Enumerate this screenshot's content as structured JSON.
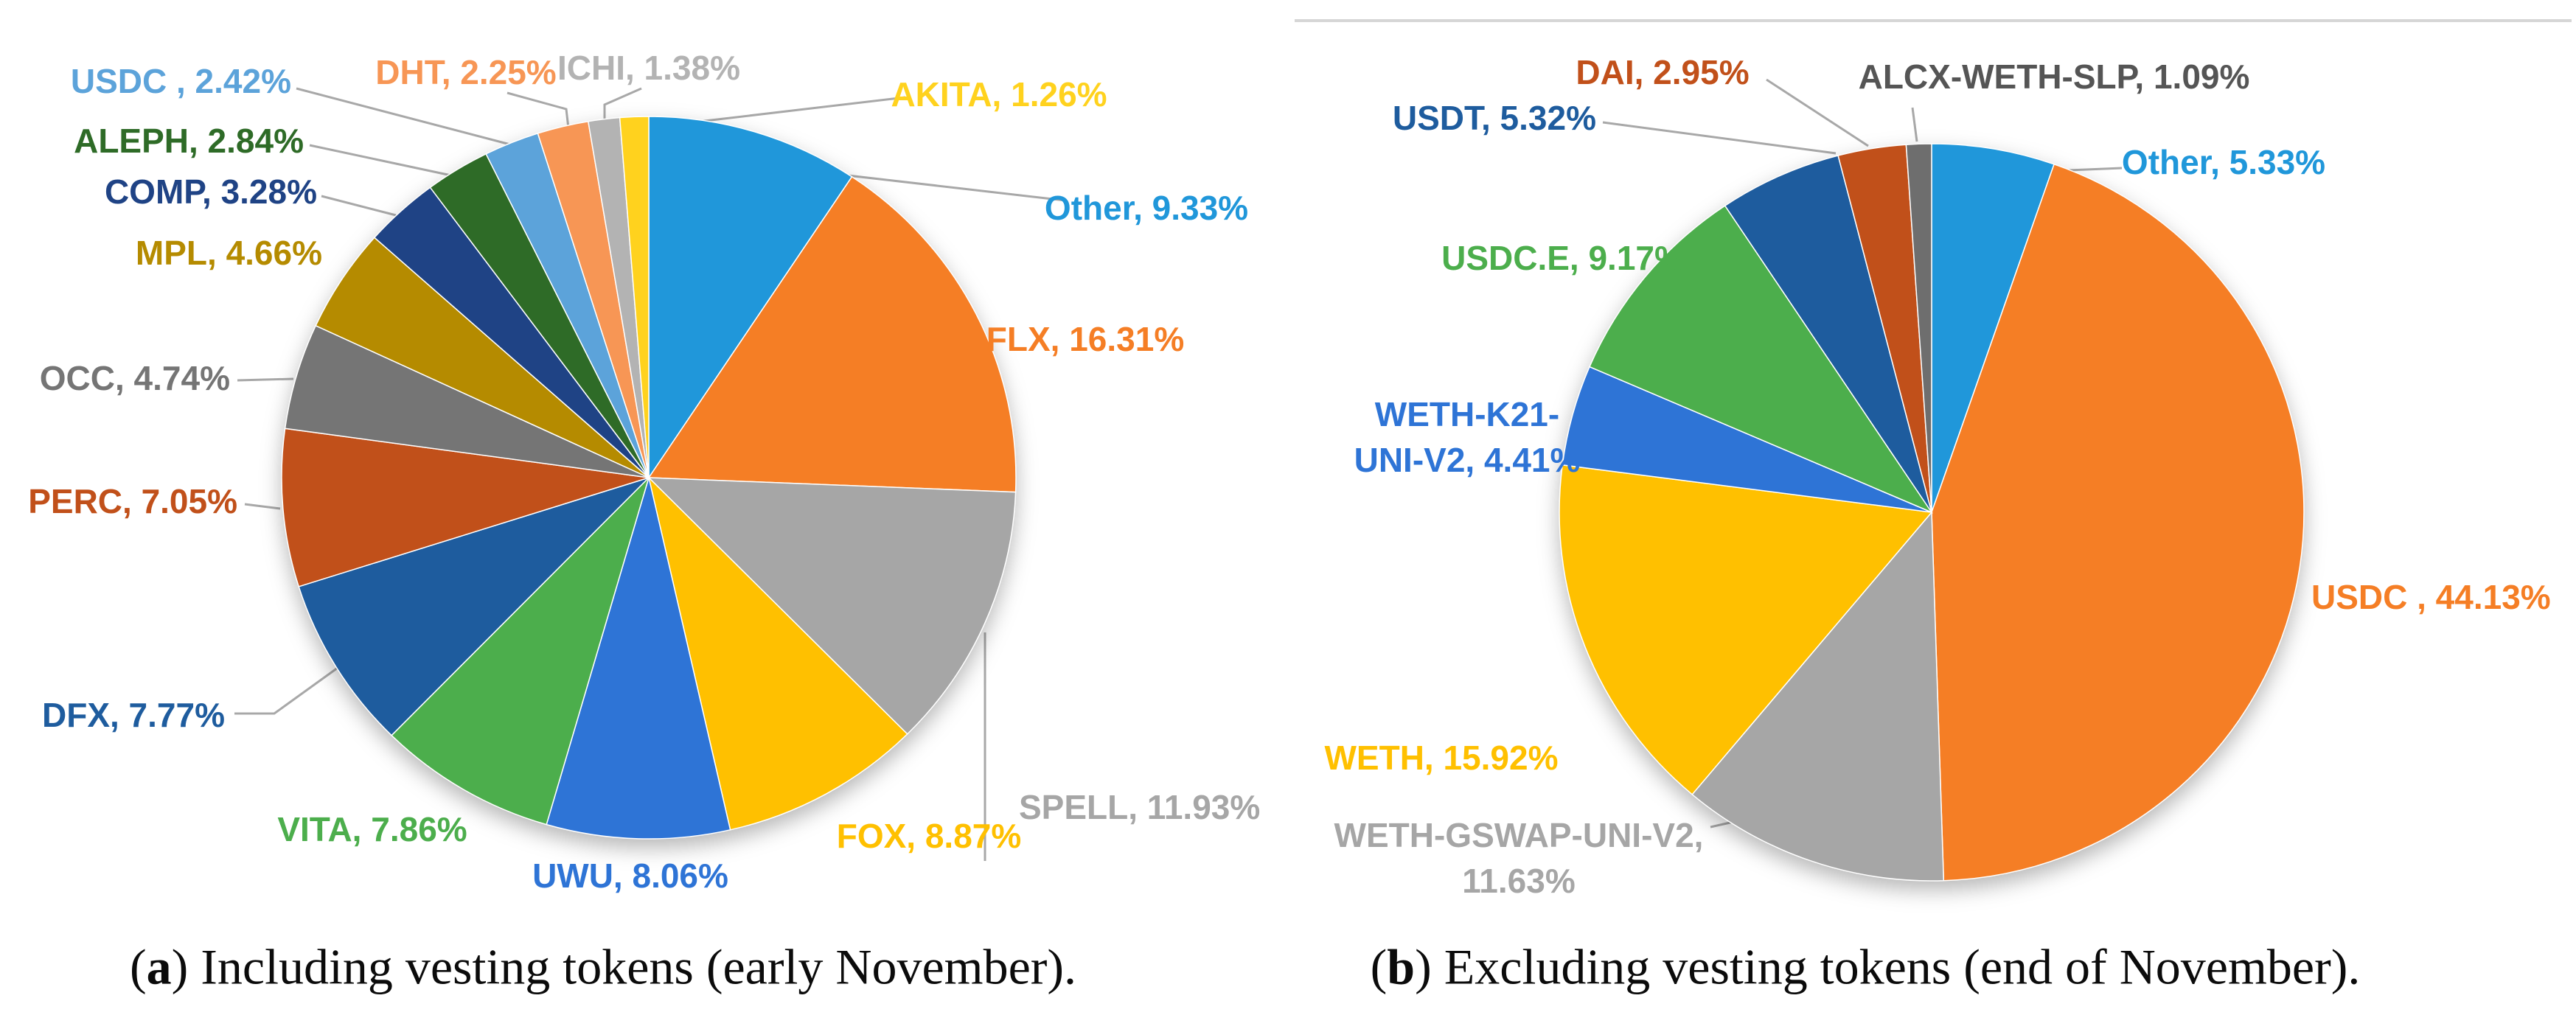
{
  "figure": {
    "background": "#ffffff",
    "leader_line_color": "#A8A8A8",
    "chart_border_color": "#D6D6D6"
  },
  "chart_data": [
    {
      "type": "pie",
      "title": "(a) Including vesting tokens (early November).",
      "caption": {
        "open": "(",
        "letter": "a",
        "rest": ") Including vesting tokens (early November)."
      },
      "legend_position": "none",
      "start_angle_deg": 0,
      "direction": "clockwise",
      "slices": [
        {
          "label": "Other",
          "value": 9.33,
          "display": "Other, 9.33%",
          "color": "#2097DA"
        },
        {
          "label": "FLX",
          "value": 16.31,
          "display": "FLX, 16.31%",
          "color": "#F57E25"
        },
        {
          "label": "SPELL",
          "value": 11.93,
          "display": "SPELL, 11.93%",
          "color": "#A6A6A6"
        },
        {
          "label": "FOX",
          "value": 8.87,
          "display": "FOX, 8.87%",
          "color": "#FFC000"
        },
        {
          "label": "UWU",
          "value": 8.06,
          "display": "UWU, 8.06%",
          "color": "#2E74D6"
        },
        {
          "label": "VITA",
          "value": 7.86,
          "display": "VITA, 7.86%",
          "color": "#4CAE4C"
        },
        {
          "label": "DFX",
          "value": 7.77,
          "display": "DFX, 7.77%",
          "color": "#1E5C9E"
        },
        {
          "label": "PERC",
          "value": 7.05,
          "display": "PERC, 7.05%",
          "color": "#C1501A"
        },
        {
          "label": "OCC",
          "value": 4.74,
          "display": "OCC, 4.74%",
          "color": "#757575"
        },
        {
          "label": "MPL",
          "value": 4.66,
          "display": "MPL, 4.66%",
          "color": "#B58B00"
        },
        {
          "label": "COMP",
          "value": 3.28,
          "display": "COMP, 3.28%",
          "color": "#1F4385"
        },
        {
          "label": "ALEPH",
          "value": 2.84,
          "display": "ALEPH, 2.84%",
          "color": "#2E6B27"
        },
        {
          "label": "USDC",
          "value": 2.42,
          "display": "USDC , 2.42%",
          "color": "#5CA3DA"
        },
        {
          "label": "DHT",
          "value": 2.25,
          "display": "DHT, 2.25%",
          "color": "#F79655"
        },
        {
          "label": "ICHI",
          "value": 1.38,
          "display": "ICHI, 1.38%",
          "color": "#B3B3B3"
        },
        {
          "label": "AKITA",
          "value": 1.26,
          "display": "AKITA, 1.26%",
          "color": "#FFD21E"
        }
      ]
    },
    {
      "type": "pie",
      "title": "(b) Excluding vesting tokens (end of November).",
      "caption": {
        "open": "(",
        "letter": "b",
        "rest": ") Excluding vesting tokens (end of November)."
      },
      "legend_position": "none",
      "start_angle_deg": 0,
      "direction": "clockwise",
      "slices": [
        {
          "label": "Other",
          "value": 5.33,
          "display": "Other, 5.33%",
          "color": "#2097DA"
        },
        {
          "label": "USDC",
          "value": 44.13,
          "display": "USDC , 44.13%",
          "color": "#F57E25"
        },
        {
          "label": "WETH-GSWAP-UNI-V2",
          "value": 11.63,
          "lines": [
            "WETH-GSWAP-UNI-V2,",
            "11.63%"
          ],
          "color": "#A6A6A6"
        },
        {
          "label": "WETH",
          "value": 15.92,
          "display": "WETH, 15.92%",
          "color": "#FFC000"
        },
        {
          "label": "WETH-K21-UNI-V2",
          "value": 4.41,
          "lines": [
            "WETH-K21-",
            "UNI-V2, 4.41%"
          ],
          "color": "#2E74D6"
        },
        {
          "label": "USDC.E",
          "value": 9.17,
          "display": "USDC.E, 9.17%",
          "color": "#4CAE4C"
        },
        {
          "label": "USDT",
          "value": 5.32,
          "display": "USDT, 5.32%",
          "color": "#1E5C9E"
        },
        {
          "label": "DAI",
          "value": 2.95,
          "display": "DAI, 2.95%",
          "color": "#C1501A"
        },
        {
          "label": "ALCX-WETH-SLP",
          "value": 1.09,
          "display": "ALCX-WETH-SLP, 1.09%",
          "color": "#6E6E6E",
          "text_color": "#555555"
        }
      ]
    }
  ]
}
